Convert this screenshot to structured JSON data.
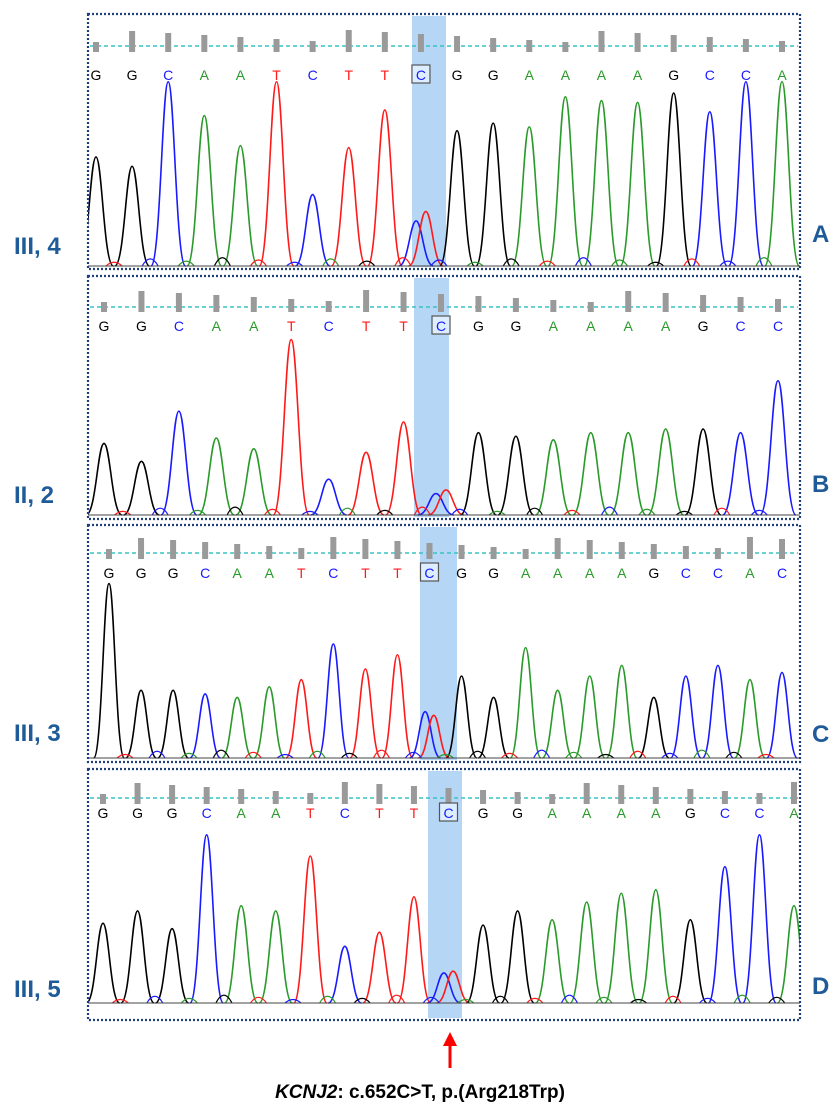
{
  "colors": {
    "A": "#2a9a2a",
    "C": "#1a1aff",
    "G": "#000000",
    "T": "#ff1a1a",
    "highlight": "#a9cff5",
    "guide_line": "#38c4c4",
    "tick": "#9a9a9a",
    "frame": "#1f3f7a",
    "label": "#1f5b99",
    "arrow": "#ff0000"
  },
  "panels": [
    {
      "id": "A",
      "left_label": "III, 4",
      "right_label": "A",
      "bases": [
        "G",
        "G",
        "C",
        "A",
        "A",
        "T",
        "C",
        "T",
        "T",
        "C",
        "G",
        "G",
        "A",
        "A",
        "A",
        "A",
        "G",
        "C",
        "C",
        "A"
      ],
      "selected_index": 9,
      "peaks": [
        {
          "base": "G",
          "h": 0.58
        },
        {
          "base": "G",
          "h": 0.53
        },
        {
          "base": "C",
          "h": 0.98
        },
        {
          "base": "A",
          "h": 0.8
        },
        {
          "base": "A",
          "h": 0.64
        },
        {
          "base": "T",
          "h": 0.98
        },
        {
          "base": "C",
          "h": 0.38
        },
        {
          "base": "T",
          "h": 0.63
        },
        {
          "base": "T",
          "h": 0.83
        },
        {
          "base": "C",
          "h": 0.24,
          "second": "T",
          "h2": 0.29
        },
        {
          "base": "G",
          "h": 0.72
        },
        {
          "base": "G",
          "h": 0.76
        },
        {
          "base": "A",
          "h": 0.74
        },
        {
          "base": "A",
          "h": 0.9
        },
        {
          "base": "A",
          "h": 0.88
        },
        {
          "base": "A",
          "h": 0.87
        },
        {
          "base": "G",
          "h": 0.92
        },
        {
          "base": "C",
          "h": 0.82
        },
        {
          "base": "C",
          "h": 0.98
        },
        {
          "base": "A",
          "h": 0.98
        }
      ]
    },
    {
      "id": "B",
      "left_label": "II, 2",
      "right_label": "B",
      "bases": [
        "G",
        "G",
        "C",
        "A",
        "A",
        "T",
        "C",
        "T",
        "T",
        "C",
        "G",
        "G",
        "A",
        "A",
        "A",
        "A",
        "G",
        "C",
        "C"
      ],
      "selected_index": 9,
      "peaks": [
        {
          "base": "G",
          "h": 0.4
        },
        {
          "base": "G",
          "h": 0.3
        },
        {
          "base": "C",
          "h": 0.58
        },
        {
          "base": "A",
          "h": 0.43
        },
        {
          "base": "A",
          "h": 0.37
        },
        {
          "base": "T",
          "h": 0.98
        },
        {
          "base": "C",
          "h": 0.2
        },
        {
          "base": "T",
          "h": 0.35
        },
        {
          "base": "T",
          "h": 0.52
        },
        {
          "base": "C",
          "h": 0.12,
          "second": "T",
          "h2": 0.14
        },
        {
          "base": "G",
          "h": 0.46
        },
        {
          "base": "G",
          "h": 0.44
        },
        {
          "base": "A",
          "h": 0.42
        },
        {
          "base": "A",
          "h": 0.46
        },
        {
          "base": "A",
          "h": 0.46
        },
        {
          "base": "A",
          "h": 0.48
        },
        {
          "base": "G",
          "h": 0.48
        },
        {
          "base": "C",
          "h": 0.46
        },
        {
          "base": "C",
          "h": 0.75
        }
      ]
    },
    {
      "id": "C",
      "left_label": "III, 3",
      "right_label": "C",
      "bases": [
        "G",
        "G",
        "G",
        "C",
        "A",
        "A",
        "T",
        "C",
        "T",
        "T",
        "C",
        "G",
        "G",
        "A",
        "A",
        "A",
        "A",
        "G",
        "C",
        "C",
        "A",
        "C"
      ],
      "selected_index": 10,
      "peaks": [
        {
          "base": "G",
          "h": 0.98
        },
        {
          "base": "G",
          "h": 0.38
        },
        {
          "base": "G",
          "h": 0.38
        },
        {
          "base": "C",
          "h": 0.36
        },
        {
          "base": "A",
          "h": 0.34
        },
        {
          "base": "A",
          "h": 0.4
        },
        {
          "base": "T",
          "h": 0.44
        },
        {
          "base": "C",
          "h": 0.64
        },
        {
          "base": "T",
          "h": 0.5
        },
        {
          "base": "T",
          "h": 0.58
        },
        {
          "base": "C",
          "h": 0.26,
          "second": "T",
          "h2": 0.24
        },
        {
          "base": "G",
          "h": 0.46
        },
        {
          "base": "G",
          "h": 0.34
        },
        {
          "base": "A",
          "h": 0.62
        },
        {
          "base": "A",
          "h": 0.38
        },
        {
          "base": "A",
          "h": 0.46
        },
        {
          "base": "A",
          "h": 0.52
        },
        {
          "base": "G",
          "h": 0.34
        },
        {
          "base": "C",
          "h": 0.46
        },
        {
          "base": "C",
          "h": 0.52
        },
        {
          "base": "A",
          "h": 0.44
        },
        {
          "base": "C",
          "h": 0.48
        }
      ]
    },
    {
      "id": "D",
      "left_label": "III, 5",
      "right_label": "D",
      "bases": [
        "G",
        "G",
        "G",
        "C",
        "A",
        "A",
        "T",
        "C",
        "T",
        "T",
        "C",
        "G",
        "G",
        "A",
        "A",
        "A",
        "A",
        "G",
        "C",
        "C",
        "A"
      ],
      "selected_index": 10,
      "peaks": [
        {
          "base": "G",
          "h": 0.45
        },
        {
          "base": "G",
          "h": 0.52
        },
        {
          "base": "G",
          "h": 0.42
        },
        {
          "base": "C",
          "h": 0.95
        },
        {
          "base": "A",
          "h": 0.55
        },
        {
          "base": "A",
          "h": 0.52
        },
        {
          "base": "T",
          "h": 0.83
        },
        {
          "base": "C",
          "h": 0.32
        },
        {
          "base": "T",
          "h": 0.4
        },
        {
          "base": "T",
          "h": 0.6
        },
        {
          "base": "C",
          "h": 0.17,
          "second": "T",
          "h2": 0.18
        },
        {
          "base": "G",
          "h": 0.44
        },
        {
          "base": "G",
          "h": 0.52
        },
        {
          "base": "A",
          "h": 0.47
        },
        {
          "base": "A",
          "h": 0.57
        },
        {
          "base": "A",
          "h": 0.62
        },
        {
          "base": "A",
          "h": 0.64
        },
        {
          "base": "G",
          "h": 0.47
        },
        {
          "base": "C",
          "h": 0.77
        },
        {
          "base": "C",
          "h": 0.95
        },
        {
          "base": "A",
          "h": 0.55
        }
      ]
    }
  ],
  "caption": {
    "gene": "KCNJ2",
    "variant": ": c.652C>T, p.(Arg218Trp)"
  }
}
